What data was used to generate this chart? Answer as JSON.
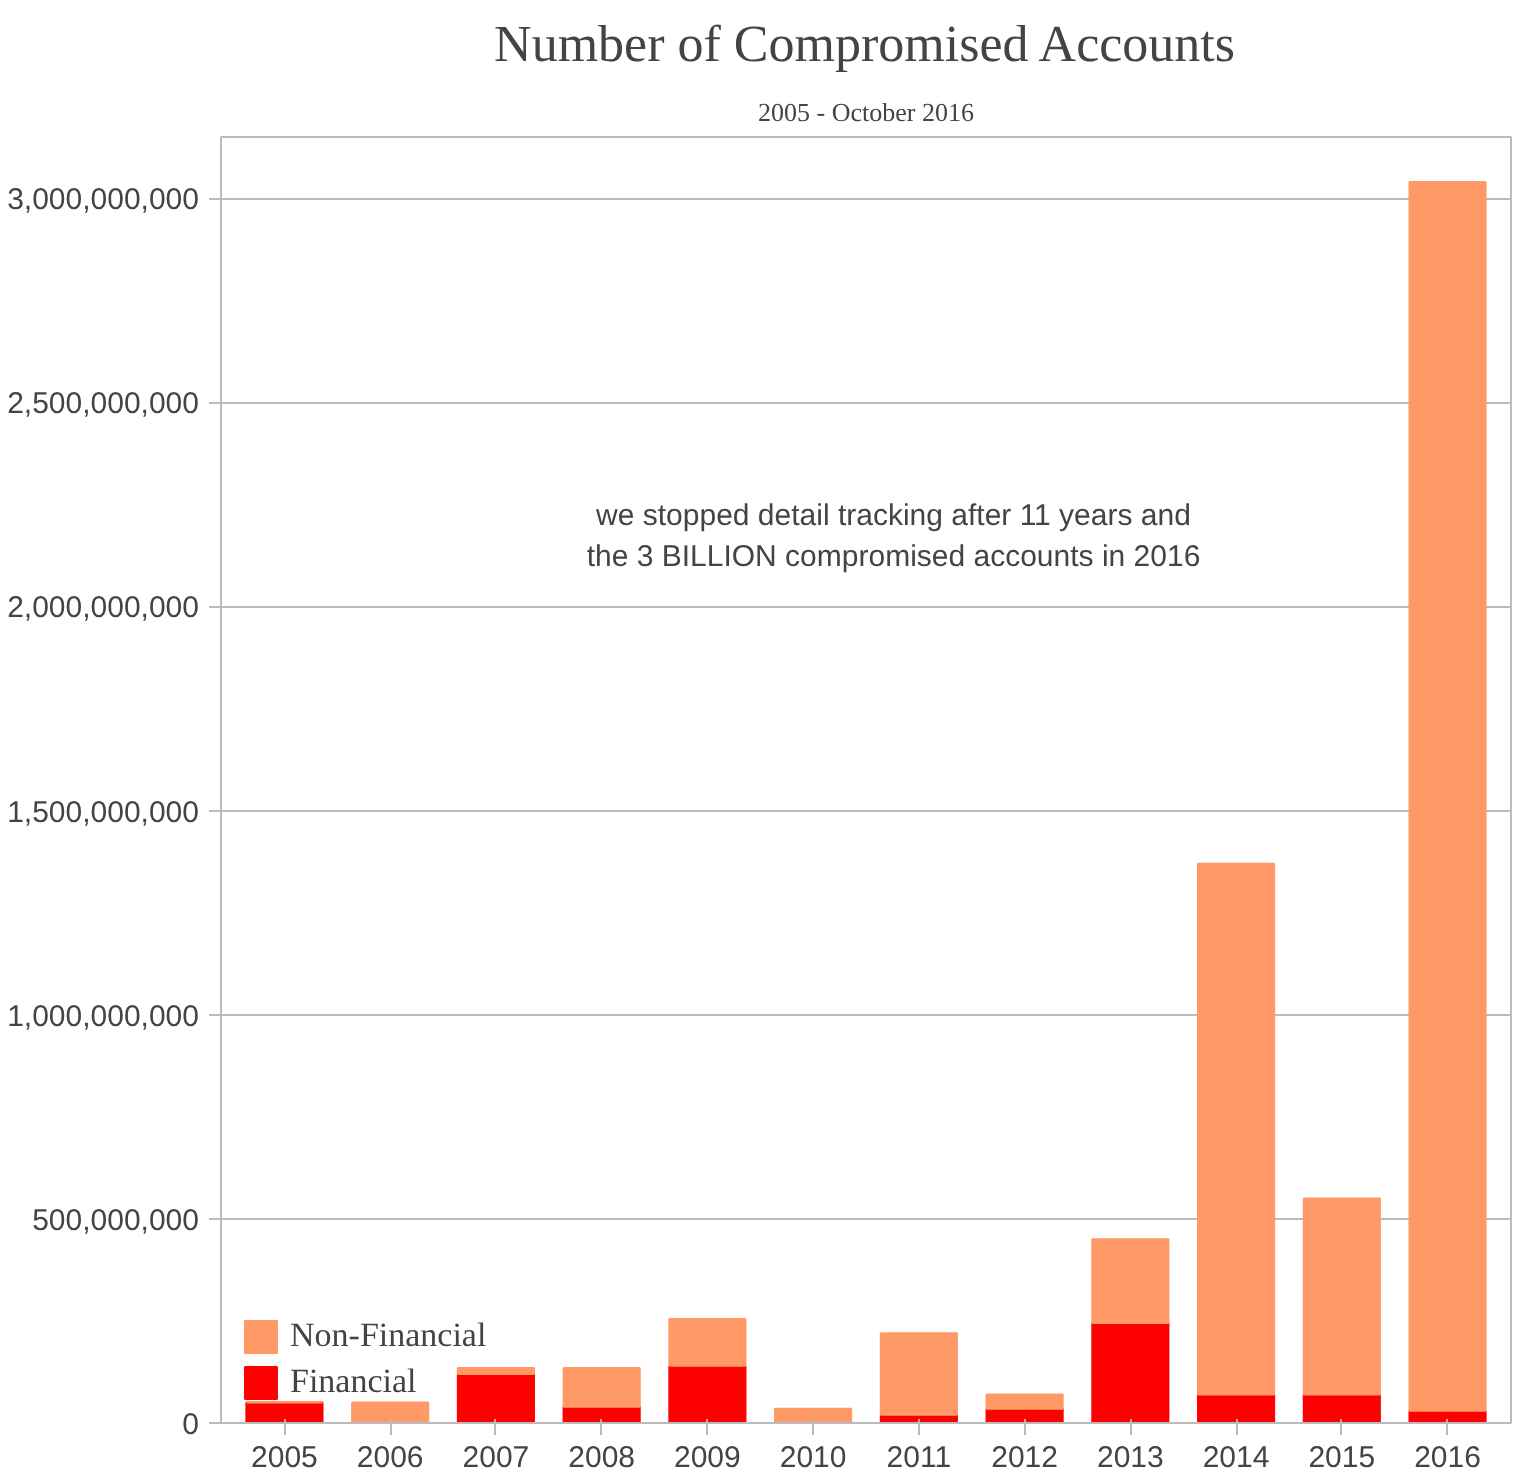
{
  "chart_data": {
    "type": "bar",
    "title": "Number of Compromised Accounts",
    "subtitle": "2005 - October 2016",
    "categories": [
      "2005",
      "2006",
      "2007",
      "2008",
      "2009",
      "2010",
      "2011",
      "2012",
      "2013",
      "2014",
      "2015",
      "2016"
    ],
    "stacked": true,
    "series": [
      {
        "name": "Financial",
        "color": "#ff0000",
        "values": [
          50000000,
          0,
          120000000,
          40000000,
          140000000,
          0,
          20000000,
          35000000,
          245000000,
          70000000,
          70000000,
          30000000
        ]
      },
      {
        "name": "Non-Financial",
        "color": "#ff9966",
        "values": [
          0,
          50000000,
          15000000,
          95000000,
          115000000,
          35000000,
          200000000,
          35000000,
          205000000,
          1300000000,
          480000000,
          3010000000
        ]
      }
    ],
    "ylim": [
      0,
      3150000000
    ],
    "yticks": [
      {
        "value": 0,
        "label": "0"
      },
      {
        "value": 500000000,
        "label": "500,000,000"
      },
      {
        "value": 1000000000,
        "label": "1,000,000,000"
      },
      {
        "value": 1500000000,
        "label": "1,500,000,000"
      },
      {
        "value": 2000000000,
        "label": "2,000,000,000"
      },
      {
        "value": 2500000000,
        "label": "2,500,000,000"
      },
      {
        "value": 3000000000,
        "label": "3,000,000,000"
      }
    ],
    "grid": "y",
    "legend": "bottom left",
    "annotations": [
      "we stopped detail tracking after 11 years and\nthe 3 BILLION compromised accounts in 2016"
    ]
  }
}
